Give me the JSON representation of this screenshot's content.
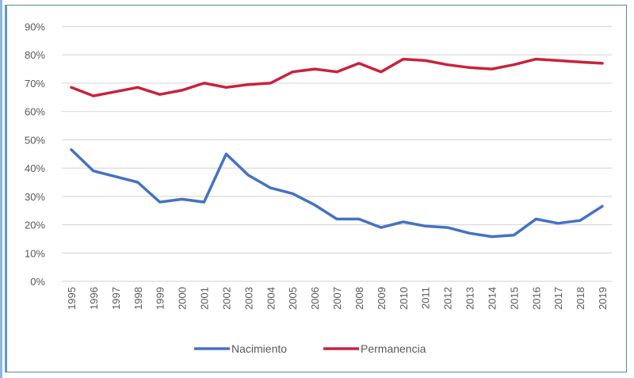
{
  "chart_data": {
    "type": "line",
    "title": "",
    "xlabel": "",
    "ylabel": "",
    "categories": [
      "1995",
      "1996",
      "1997",
      "1998",
      "1999",
      "2000",
      "2001",
      "2002",
      "2003",
      "2004",
      "2005",
      "2006",
      "2007",
      "2008",
      "2009",
      "2010",
      "2011",
      "2012",
      "2013",
      "2014",
      "2015",
      "2016",
      "2017",
      "2018",
      "2019"
    ],
    "yticks": [
      "0%",
      "10%",
      "20%",
      "30%",
      "40%",
      "50%",
      "60%",
      "70%",
      "80%",
      "90%"
    ],
    "ylim": [
      0,
      90
    ],
    "grid": true,
    "legend_position": "bottom",
    "series": [
      {
        "name": "Nacimiento",
        "color": "#4472c4",
        "values": [
          46.5,
          39,
          37,
          35,
          28,
          29,
          28,
          45,
          37.5,
          33,
          31,
          27,
          22,
          22,
          19,
          21,
          19.5,
          19,
          17,
          15.8,
          16.3,
          22,
          20.5,
          21.5,
          26.5
        ]
      },
      {
        "name": "Permanencia",
        "color": "#c8233b",
        "values": [
          68.5,
          65.5,
          67,
          68.5,
          66,
          67.5,
          70,
          68.5,
          69.5,
          70,
          74,
          75,
          74,
          77,
          74,
          78.5,
          78,
          76.5,
          75.5,
          75,
          76.5,
          78.5,
          78,
          77.5,
          77
        ]
      }
    ]
  }
}
